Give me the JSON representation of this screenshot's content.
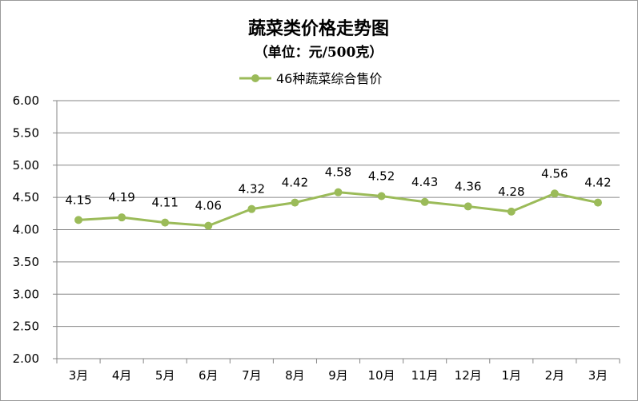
{
  "chart_data": {
    "type": "line",
    "title": "蔬菜类价格走势图",
    "subtitle": "（单位：元/500克）",
    "categories": [
      "3月",
      "4月",
      "5月",
      "6月",
      "7月",
      "8月",
      "9月",
      "10月",
      "11月",
      "12月",
      "1月",
      "2月",
      "3月"
    ],
    "series": [
      {
        "name": "46种蔬菜综合售价",
        "values": [
          4.15,
          4.19,
          4.11,
          4.06,
          4.32,
          4.42,
          4.58,
          4.52,
          4.43,
          4.36,
          4.28,
          4.56,
          4.42
        ],
        "labels": [
          "4.15",
          "4.19",
          "4.11",
          "4.06",
          "4.32",
          "4.42",
          "4.58",
          "4.52",
          "4.43",
          "4.36",
          "4.28",
          "4.56",
          "4.42"
        ],
        "color": "#9bbb59"
      }
    ],
    "ylim": [
      2.0,
      6.0
    ],
    "yticks": [
      "2.00",
      "2.50",
      "3.00",
      "3.50",
      "4.00",
      "4.50",
      "5.00",
      "5.50",
      "6.00"
    ],
    "grid": true,
    "legend_position": "top-center"
  }
}
